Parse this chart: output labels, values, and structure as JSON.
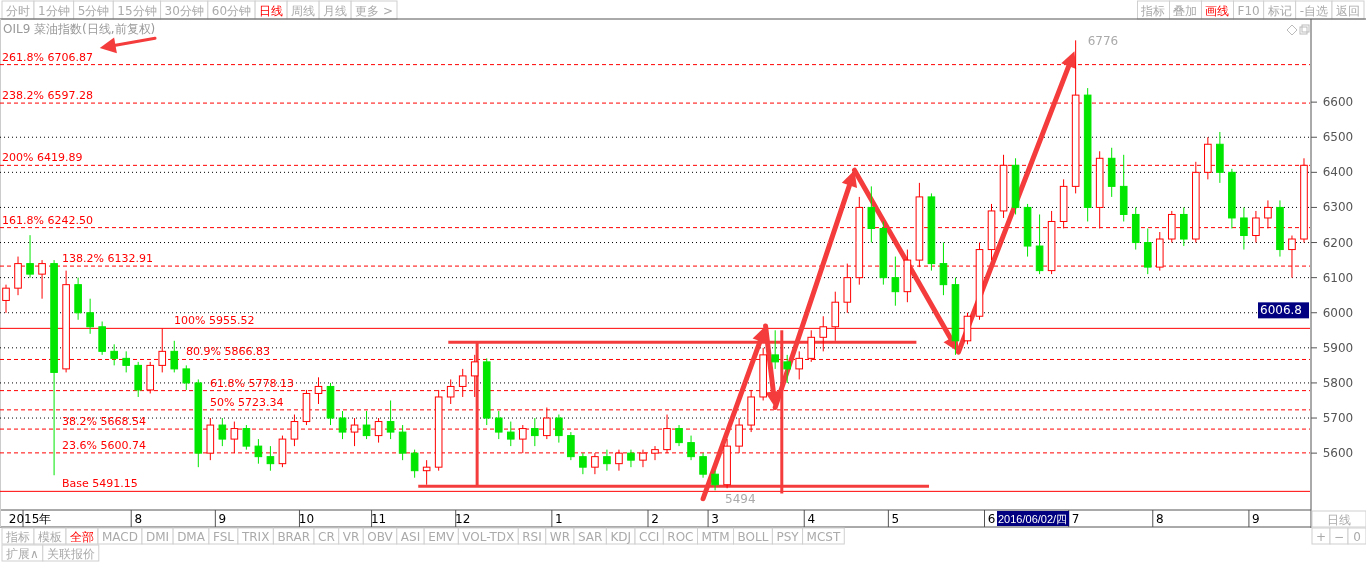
{
  "chart_data": [
    {
      "type": "other",
      "annotations": [
        "分时",
        "1分钟",
        "5分钟",
        "15分钟",
        "30分钟",
        "60分钟",
        "日线",
        "周线",
        "月线",
        "更多 >"
      ],
      "colors": [
        "#aaaaaa",
        "#aaaaaa",
        "#aaaaaa",
        "#aaaaaa",
        "#aaaaaa",
        "#aaaaaa",
        "#ff0000",
        "#aaaaaa",
        "#aaaaaa",
        "#aaaaaa"
      ]
    },
    {
      "type": "other",
      "annotations": [
        "指标",
        "叠加",
        "画线",
        "F10",
        "标记",
        "-自选",
        "返回"
      ],
      "colors": [
        "#aaaaaa",
        "#aaaaaa",
        "#ff0000",
        "#aaaaaa",
        "#aaaaaa",
        "#aaaaaa",
        "#aaaaaa"
      ]
    },
    {
      "type": "candlestick",
      "title": "OIL9 菜油指数(日线,前复权)",
      "categories": [
        null,
        null,
        "2015年",
        null,
        null,
        null,
        null,
        null,
        null,
        null,
        null,
        "8",
        null,
        null,
        null,
        null,
        null,
        null,
        "9",
        null,
        null,
        null,
        null,
        null,
        null,
        "10",
        null,
        null,
        null,
        null,
        null,
        "11",
        null,
        null,
        null,
        null,
        null,
        null,
        "12",
        null,
        null,
        null,
        null,
        null,
        null,
        null,
        "1",
        null,
        null,
        null,
        null,
        null,
        null,
        null,
        "2",
        null,
        null,
        null,
        null,
        "3",
        null,
        null,
        null,
        null,
        null,
        null,
        null,
        "4",
        null,
        null,
        null,
        null,
        null,
        null,
        "5",
        null,
        null,
        null,
        null,
        null,
        null,
        null,
        "6",
        null,
        null,
        null,
        null,
        null,
        null,
        "7",
        null,
        null,
        null,
        null,
        null,
        null,
        "8",
        null,
        null,
        null,
        null,
        null,
        null,
        null,
        "9",
        null,
        null,
        null,
        null
      ],
      "ohlc": [
        [
          6035,
          6080,
          6000,
          6070
        ],
        [
          6070,
          6160,
          6050,
          6140
        ],
        [
          6140,
          6221,
          6100,
          6110
        ],
        [
          6110,
          6150,
          6040,
          6140
        ],
        [
          6140,
          6150,
          5537,
          5830
        ],
        [
          5840,
          6120,
          5830,
          6080
        ],
        [
          6080,
          6100,
          5980,
          6000
        ],
        [
          6000,
          6040,
          5940,
          5960
        ],
        [
          5960,
          5975,
          5880,
          5890
        ],
        [
          5890,
          5910,
          5850,
          5870
        ],
        [
          5870,
          5890,
          5830,
          5850
        ],
        [
          5850,
          5860,
          5760,
          5780
        ],
        [
          5780,
          5860,
          5770,
          5850
        ],
        [
          5850,
          5955,
          5830,
          5890
        ],
        [
          5890,
          5920,
          5830,
          5840
        ],
        [
          5840,
          5850,
          5780,
          5800
        ],
        [
          5800,
          5810,
          5560,
          5600
        ],
        [
          5600,
          5700,
          5580,
          5680
        ],
        [
          5680,
          5700,
          5620,
          5640
        ],
        [
          5640,
          5690,
          5600,
          5670
        ],
        [
          5670,
          5680,
          5610,
          5620
        ],
        [
          5620,
          5640,
          5570,
          5590
        ],
        [
          5590,
          5620,
          5550,
          5570
        ],
        [
          5570,
          5650,
          5560,
          5640
        ],
        [
          5640,
          5710,
          5620,
          5690
        ],
        [
          5690,
          5780,
          5680,
          5770
        ],
        [
          5770,
          5816,
          5740,
          5790
        ],
        [
          5790,
          5800,
          5680,
          5700
        ],
        [
          5700,
          5720,
          5640,
          5660
        ],
        [
          5660,
          5700,
          5620,
          5680
        ],
        [
          5680,
          5720,
          5640,
          5650
        ],
        [
          5650,
          5700,
          5630,
          5690
        ],
        [
          5690,
          5750,
          5640,
          5660
        ],
        [
          5660,
          5680,
          5580,
          5600
        ],
        [
          5600,
          5610,
          5530,
          5550
        ],
        [
          5550,
          5580,
          5510,
          5560
        ],
        [
          5560,
          5780,
          5550,
          5760
        ],
        [
          5760,
          5810,
          5740,
          5790
        ],
        [
          5790,
          5840,
          5760,
          5820
        ],
        [
          5820,
          5880,
          5760,
          5860
        ],
        [
          5860,
          5870,
          5680,
          5700
        ],
        [
          5700,
          5720,
          5640,
          5660
        ],
        [
          5660,
          5690,
          5620,
          5640
        ],
        [
          5640,
          5680,
          5600,
          5670
        ],
        [
          5670,
          5700,
          5620,
          5650
        ],
        [
          5650,
          5730,
          5640,
          5700
        ],
        [
          5700,
          5710,
          5630,
          5650
        ],
        [
          5650,
          5660,
          5580,
          5590
        ],
        [
          5590,
          5600,
          5540,
          5560
        ],
        [
          5560,
          5600,
          5540,
          5590
        ],
        [
          5590,
          5610,
          5550,
          5570
        ],
        [
          5570,
          5610,
          5550,
          5600
        ],
        [
          5600,
          5610,
          5560,
          5580
        ],
        [
          5580,
          5610,
          5560,
          5600
        ],
        [
          5600,
          5620,
          5580,
          5610
        ],
        [
          5610,
          5710,
          5600,
          5670
        ],
        [
          5670,
          5680,
          5620,
          5630
        ],
        [
          5630,
          5650,
          5580,
          5590
        ],
        [
          5590,
          5600,
          5530,
          5540
        ],
        [
          5540,
          5550,
          5494,
          5510
        ],
        [
          5510,
          5640,
          5500,
          5620
        ],
        [
          5620,
          5700,
          5600,
          5680
        ],
        [
          5680,
          5780,
          5660,
          5760
        ],
        [
          5760,
          5900,
          5750,
          5880
        ],
        [
          5880,
          5950,
          5840,
          5860
        ],
        [
          5860,
          5880,
          5800,
          5840
        ],
        [
          5840,
          5890,
          5810,
          5870
        ],
        [
          5870,
          5950,
          5860,
          5930
        ],
        [
          5930,
          5990,
          5890,
          5960
        ],
        [
          5960,
          6060,
          5920,
          6030
        ],
        [
          6030,
          6140,
          6000,
          6100
        ],
        [
          6100,
          6330,
          6080,
          6300
        ],
        [
          6300,
          6360,
          6200,
          6240
        ],
        [
          6240,
          6260,
          6080,
          6100
        ],
        [
          6100,
          6160,
          6020,
          6060
        ],
        [
          6060,
          6180,
          6030,
          6150
        ],
        [
          6150,
          6370,
          6130,
          6330
        ],
        [
          6330,
          6340,
          6120,
          6140
        ],
        [
          6140,
          6200,
          6050,
          6080
        ],
        [
          6080,
          6100,
          5880,
          5920
        ],
        [
          5920,
          6000,
          5910,
          5990
        ],
        [
          5990,
          6200,
          5980,
          6180
        ],
        [
          6180,
          6310,
          6150,
          6290
        ],
        [
          6290,
          6450,
          6270,
          6420
        ],
        [
          6420,
          6440,
          6280,
          6300
        ],
        [
          6300,
          6310,
          6160,
          6190
        ],
        [
          6190,
          6280,
          6110,
          6120
        ],
        [
          6120,
          6290,
          6110,
          6260
        ],
        [
          6260,
          6380,
          6240,
          6360
        ],
        [
          6360,
          6776,
          6340,
          6620
        ],
        [
          6620,
          6640,
          6260,
          6300
        ],
        [
          6300,
          6460,
          6240,
          6440
        ],
        [
          6440,
          6470,
          6330,
          6360
        ],
        [
          6360,
          6450,
          6260,
          6280
        ],
        [
          6280,
          6300,
          6180,
          6200
        ],
        [
          6200,
          6240,
          6110,
          6130
        ],
        [
          6130,
          6230,
          6120,
          6210
        ],
        [
          6210,
          6290,
          6200,
          6280
        ],
        [
          6280,
          6300,
          6190,
          6210
        ],
        [
          6210,
          6430,
          6200,
          6400
        ],
        [
          6400,
          6500,
          6380,
          6480
        ],
        [
          6480,
          6515,
          6370,
          6400
        ],
        [
          6400,
          6410,
          6240,
          6270
        ],
        [
          6270,
          6300,
          6180,
          6220
        ],
        [
          6220,
          6290,
          6200,
          6270
        ],
        [
          6270,
          6320,
          6240,
          6300
        ],
        [
          6300,
          6320,
          6160,
          6180
        ],
        [
          6180,
          6220,
          6100,
          6210
        ],
        [
          6210,
          6440,
          6200,
          6420
        ]
      ],
      "colors": [
        "#ff0000",
        "#ff0000",
        "#00e600",
        "#ff0000",
        "#00e600",
        "#ff0000",
        "#00e600",
        "#00e600",
        "#00e600",
        "#00e600",
        "#00e600",
        "#00e600",
        "#ff0000",
        "#ff0000",
        "#00e600",
        "#00e600",
        "#00e600",
        "#ff0000",
        "#00e600",
        "#ff0000",
        "#00e600",
        "#00e600",
        "#00e600",
        "#ff0000",
        "#ff0000",
        "#ff0000",
        "#ff0000",
        "#00e600",
        "#00e600",
        "#ff0000",
        "#00e600",
        "#ff0000",
        "#00e600",
        "#00e600",
        "#00e600",
        "#ff0000",
        "#ff0000",
        "#ff0000",
        "#ff0000",
        "#ff0000",
        "#00e600",
        "#00e600",
        "#00e600",
        "#ff0000",
        "#00e600",
        "#ff0000",
        "#00e600",
        "#00e600",
        "#00e600",
        "#ff0000",
        "#00e600",
        "#ff0000",
        "#00e600",
        "#ff0000",
        "#ff0000",
        "#ff0000",
        "#00e600",
        "#00e600",
        "#00e600",
        "#00e600",
        "#ff0000",
        "#ff0000",
        "#ff0000",
        "#ff0000",
        "#00e600",
        "#00e600",
        "#ff0000",
        "#ff0000",
        "#ff0000",
        "#ff0000",
        "#ff0000",
        "#ff0000",
        "#00e600",
        "#00e600",
        "#00e600",
        "#ff0000",
        "#ff0000",
        "#00e600",
        "#00e600",
        "#00e600",
        "#ff0000",
        "#ff0000",
        "#ff0000",
        "#ff0000",
        "#00e600",
        "#00e600",
        "#00e600",
        "#ff0000",
        "#ff0000",
        "#ff0000",
        "#00e600",
        "#ff0000",
        "#00e600",
        "#00e600",
        "#00e600",
        "#00e600",
        "#ff0000",
        "#ff0000",
        "#00e600",
        "#ff0000",
        "#ff0000",
        "#00e600",
        "#00e600",
        "#00e600",
        "#ff0000",
        "#ff0000",
        "#00e600",
        "#ff0000",
        "#ff0000"
      ],
      "ylim": [
        5438,
        6834
      ],
      "yticks": [
        5600,
        5700,
        5800,
        5900,
        6000,
        6100,
        6200,
        6300,
        6400,
        6500,
        6600
      ],
      "grid": "y",
      "ref_lines": [
        {
          "axis": "y",
          "value": 6706.87,
          "label": "261.8% 6706.87",
          "color": "#ff0000",
          "line_style": "dashed"
        },
        {
          "axis": "y",
          "value": 6597.28,
          "label": "238.2% 6597.28",
          "color": "#ff0000",
          "line_style": "dashed"
        },
        {
          "axis": "y",
          "value": 6419.89,
          "label": "200% 6419.89",
          "color": "#ff0000",
          "line_style": "dashed"
        },
        {
          "axis": "y",
          "value": 6242.5,
          "label": "161.8% 6242.50",
          "color": "#ff0000",
          "line_style": "dashed"
        },
        {
          "axis": "y",
          "value": 6132.91,
          "label": "138.2% 6132.91",
          "color": "#ff0000",
          "line_style": "dashed"
        },
        {
          "axis": "y",
          "value": 5955.52,
          "label": "100% 5955.52",
          "color": "#ff0000",
          "line_style": "solid"
        },
        {
          "axis": "y",
          "value": 5866.83,
          "label": "80.9% 5866.83",
          "color": "#ff0000",
          "line_style": "dashed"
        },
        {
          "axis": "y",
          "value": 5778.13,
          "label": "61.8% 5778.13",
          "color": "#ff0000",
          "line_style": "dashed"
        },
        {
          "axis": "y",
          "value": 5723.34,
          "label": "50% 5723.34",
          "color": "#ff0000",
          "line_style": "dashed"
        },
        {
          "axis": "y",
          "value": 5668.54,
          "label": "38.2% 5668.54",
          "color": "#ff0000",
          "line_style": "dashed"
        },
        {
          "axis": "y",
          "value": 5600.74,
          "label": "23.6% 5600.74",
          "color": "#ff0000",
          "line_style": "dashed"
        },
        {
          "axis": "y",
          "value": 5491.15,
          "label": "Base 5491.15",
          "color": "#ff0000",
          "line_style": "solid"
        }
      ],
      "annotations": [
        "6776",
        {
          "text": "5494",
          "y": 5494
        },
        "6006.8",
        "2016/06/02/四"
      ]
    },
    {
      "type": "other",
      "annotations": [
        "指标",
        "模板",
        "全部",
        "MACD",
        "DMI",
        "DMA",
        "FSL",
        "TRIX",
        "BRAR",
        "CR",
        "VR",
        "OBV",
        "ASI",
        "EMV",
        "VOL-TDX",
        "RSI",
        "WR",
        "SAR",
        "KDJ",
        "CCI",
        "ROC",
        "MTM",
        "BOLL",
        "PSY",
        "MCST"
      ],
      "colors": [
        "#aaaaaa",
        "#aaaaaa",
        "#ff0000",
        "#aaaaaa",
        "#aaaaaa",
        "#aaaaaa",
        "#aaaaaa",
        "#aaaaaa",
        "#aaaaaa",
        "#aaaaaa",
        "#aaaaaa",
        "#aaaaaa",
        "#aaaaaa",
        "#aaaaaa",
        "#aaaaaa",
        "#aaaaaa",
        "#aaaaaa",
        "#aaaaaa",
        "#aaaaaa",
        "#aaaaaa",
        "#aaaaaa",
        "#aaaaaa",
        "#aaaaaa",
        "#aaaaaa",
        "#aaaaaa"
      ]
    },
    {
      "type": "other",
      "annotations": [
        "扩展∧",
        "关联报价"
      ],
      "colors": [
        "#aaaaaa",
        "#aaaaaa"
      ]
    },
    {
      "type": "other",
      "annotations": [
        "日线",
        "+",
        "−",
        "0"
      ],
      "colors": [
        "#aaaaaa",
        "#aaaaaa",
        "#aaaaaa",
        "#aaaaaa"
      ]
    }
  ]
}
